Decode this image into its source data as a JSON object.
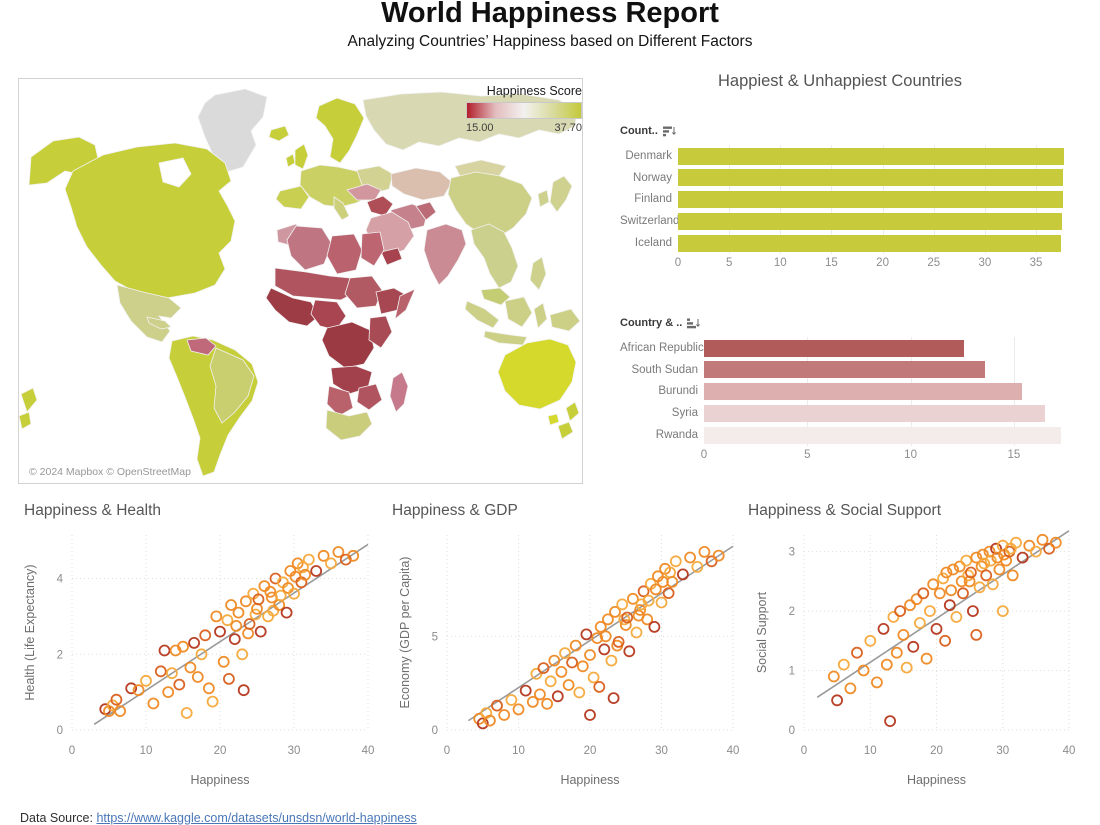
{
  "page": {
    "title": "World Happiness Report",
    "subtitle": "Analyzing Countries’ Happiness based on Different Factors",
    "footer_label": "Data Source:",
    "footer_link_text": "https://www.kaggle.com/datasets/unsdsn/world-happiness"
  },
  "map_panel": {
    "legend_title": "Happiness Score",
    "legend_min": "15.00",
    "legend_max": "37.70",
    "legend_gradient": [
      "#b21f2b",
      "#e3bcbe",
      "#f2f1ef",
      "#d9db9f",
      "#c4c93a"
    ],
    "attribution": "© 2024 Mapbox  © OpenStreetMap"
  },
  "right_panel_title": "Happiest & Unhappiest Countries",
  "point_colors": [
    "#b5371c",
    "#d95f1e",
    "#ef8923",
    "#f6a93b"
  ],
  "chart_data": [
    {
      "id": "happiest-countries",
      "type": "bar",
      "orientation": "horizontal",
      "field_label": "Count..",
      "categories": [
        "Denmark",
        "Norway",
        "Finland",
        "Switzerland",
        "Iceland"
      ],
      "values": [
        37.7,
        37.65,
        37.6,
        37.5,
        37.45
      ],
      "bar_color": "#c6ca3b",
      "xlim": [
        0,
        39.3
      ],
      "ticks": [
        0,
        5,
        10,
        15,
        20,
        25,
        30,
        35
      ]
    },
    {
      "id": "unhappiest-countries",
      "type": "bar",
      "orientation": "horizontal",
      "field_label": "Country & ..",
      "categories": [
        "African Republic",
        "South Sudan",
        "Burundi",
        "Syria",
        "Rwanda"
      ],
      "values": [
        12.6,
        13.6,
        15.4,
        16.5,
        17.3
      ],
      "bar_colors": [
        "#b25b5b",
        "#c27979",
        "#ddafaf",
        "#ebd2d2",
        "#f4ebeb"
      ],
      "xlim": [
        0,
        18.2
      ],
      "ticks": [
        0,
        5,
        10,
        15
      ]
    },
    {
      "id": "happiness-health",
      "type": "scatter",
      "title": "Happiness & Health",
      "xlabel": "Happiness",
      "ylabel": "Health (Life Expectancy)",
      "xlim": [
        0,
        40
      ],
      "ylim": [
        0,
        5.15
      ],
      "x_ticks": [
        0,
        10,
        20,
        30,
        40
      ],
      "y_ticks": [
        0,
        2,
        4
      ],
      "trend": [
        3,
        0.15,
        40,
        4.9
      ],
      "points": [
        [
          4.5,
          0.55,
          0
        ],
        [
          5,
          0.5,
          2
        ],
        [
          5.5,
          0.65,
          3
        ],
        [
          6,
          0.8,
          1
        ],
        [
          6.5,
          0.5,
          2
        ],
        [
          8,
          1.1,
          0
        ],
        [
          9,
          1.05,
          2
        ],
        [
          10,
          1.3,
          3
        ],
        [
          11,
          0.7,
          2
        ],
        [
          12,
          1.55,
          1
        ],
        [
          12.5,
          2.1,
          0
        ],
        [
          13,
          1.0,
          2
        ],
        [
          13.5,
          1.5,
          3
        ],
        [
          14,
          2.1,
          2
        ],
        [
          14.5,
          1.2,
          1
        ],
        [
          15,
          2.2,
          2
        ],
        [
          15.5,
          0.45,
          3
        ],
        [
          16,
          1.65,
          2
        ],
        [
          16.5,
          2.3,
          0
        ],
        [
          17,
          1.4,
          2
        ],
        [
          17.5,
          2.0,
          3
        ],
        [
          18,
          2.5,
          1
        ],
        [
          18.5,
          1.1,
          2
        ],
        [
          19,
          0.75,
          3
        ],
        [
          19.5,
          3.0,
          2
        ],
        [
          20,
          2.6,
          0
        ],
        [
          20.5,
          1.8,
          2
        ],
        [
          21,
          2.9,
          3
        ],
        [
          21.2,
          1.35,
          1
        ],
        [
          21.5,
          3.3,
          2
        ],
        [
          22,
          2.4,
          0
        ],
        [
          22.2,
          2.75,
          2
        ],
        [
          22.5,
          3.1,
          2
        ],
        [
          23,
          2.0,
          3
        ],
        [
          23.2,
          1.05,
          0
        ],
        [
          23.5,
          3.4,
          2
        ],
        [
          23.8,
          2.55,
          2
        ],
        [
          24,
          2.8,
          1
        ],
        [
          24.5,
          3.6,
          3
        ],
        [
          24.8,
          3.05,
          3
        ],
        [
          25,
          3.2,
          2
        ],
        [
          25.2,
          3.45,
          1
        ],
        [
          25.5,
          2.6,
          0
        ],
        [
          26,
          3.8,
          2
        ],
        [
          26.5,
          3.0,
          3
        ],
        [
          26.8,
          3.65,
          2
        ],
        [
          27,
          3.5,
          2
        ],
        [
          27.2,
          3.15,
          3
        ],
        [
          27.5,
          4.0,
          1
        ],
        [
          28,
          3.3,
          2
        ],
        [
          28.2,
          3.55,
          3
        ],
        [
          28.5,
          3.9,
          3
        ],
        [
          29,
          3.1,
          0
        ],
        [
          29.2,
          3.75,
          2
        ],
        [
          29.5,
          4.2,
          2
        ],
        [
          30,
          3.6,
          3
        ],
        [
          30.2,
          4.05,
          2
        ],
        [
          30.5,
          4.4,
          2
        ],
        [
          31,
          3.9,
          1
        ],
        [
          31.2,
          4.3,
          3
        ],
        [
          31.5,
          4.1,
          2
        ],
        [
          32,
          4.5,
          3
        ],
        [
          33,
          4.2,
          0
        ],
        [
          34,
          4.6,
          2
        ],
        [
          35,
          4.4,
          3
        ],
        [
          36,
          4.7,
          2
        ],
        [
          37,
          4.5,
          1
        ],
        [
          38,
          4.6,
          2
        ]
      ]
    },
    {
      "id": "happiness-gdp",
      "type": "scatter",
      "title": "Happiness & GDP",
      "xlabel": "Happiness",
      "ylabel": "Economy (GDP per Capita)",
      "xlim": [
        0,
        40
      ],
      "ylim": [
        0,
        10.4
      ],
      "x_ticks": [
        0,
        10,
        20,
        30,
        40
      ],
      "y_ticks": [
        0,
        5
      ],
      "trend": [
        3,
        0.5,
        40,
        9.8
      ],
      "points": [
        [
          4.5,
          0.6,
          2
        ],
        [
          5,
          0.35,
          0
        ],
        [
          5.5,
          0.9,
          3
        ],
        [
          6,
          0.5,
          2
        ],
        [
          7,
          1.3,
          1
        ],
        [
          8,
          0.8,
          2
        ],
        [
          9,
          1.6,
          3
        ],
        [
          10,
          1.1,
          2
        ],
        [
          11,
          2.1,
          0
        ],
        [
          12,
          1.5,
          2
        ],
        [
          12.5,
          3.0,
          3
        ],
        [
          13,
          1.9,
          2
        ],
        [
          13.5,
          3.3,
          1
        ],
        [
          14,
          1.4,
          2
        ],
        [
          14.5,
          2.6,
          3
        ],
        [
          15,
          3.7,
          2
        ],
        [
          15.5,
          1.8,
          0
        ],
        [
          16,
          3.1,
          2
        ],
        [
          16.5,
          4.1,
          3
        ],
        [
          17,
          2.4,
          2
        ],
        [
          17.5,
          3.6,
          1
        ],
        [
          18,
          4.5,
          2
        ],
        [
          18.5,
          2.0,
          3
        ],
        [
          19,
          3.4,
          2
        ],
        [
          19.5,
          5.1,
          0
        ],
        [
          20,
          4.0,
          2
        ],
        [
          20,
          0.8,
          0
        ],
        [
          20.5,
          2.8,
          3
        ],
        [
          21,
          4.9,
          2
        ],
        [
          21.3,
          2.3,
          1
        ],
        [
          21.5,
          5.5,
          2
        ],
        [
          22,
          4.3,
          0
        ],
        [
          22.2,
          5.0,
          2
        ],
        [
          22.5,
          5.9,
          2
        ],
        [
          23,
          3.7,
          3
        ],
        [
          23.3,
          1.7,
          0
        ],
        [
          23.5,
          6.3,
          2
        ],
        [
          23.8,
          4.5,
          2
        ],
        [
          24,
          4.7,
          1
        ],
        [
          24.5,
          6.7,
          3
        ],
        [
          24.8,
          5.9,
          3
        ],
        [
          25,
          5.6,
          2
        ],
        [
          25.2,
          6.0,
          1
        ],
        [
          25.5,
          4.2,
          0
        ],
        [
          26,
          7.0,
          2
        ],
        [
          26.5,
          5.2,
          3
        ],
        [
          26.8,
          6.1,
          2
        ],
        [
          27,
          6.4,
          2
        ],
        [
          27.2,
          6.7,
          3
        ],
        [
          27.5,
          7.4,
          1
        ],
        [
          28,
          5.9,
          2
        ],
        [
          28.2,
          6.9,
          3
        ],
        [
          28.5,
          7.8,
          3
        ],
        [
          29,
          5.5,
          0
        ],
        [
          29.2,
          7.5,
          2
        ],
        [
          29.5,
          8.2,
          2
        ],
        [
          30,
          6.8,
          3
        ],
        [
          30.2,
          7.9,
          2
        ],
        [
          30.5,
          8.6,
          2
        ],
        [
          31,
          7.3,
          1
        ],
        [
          31.2,
          8.4,
          3
        ],
        [
          31.5,
          7.9,
          2
        ],
        [
          32,
          9.0,
          3
        ],
        [
          33,
          8.3,
          0
        ],
        [
          34,
          9.2,
          2
        ],
        [
          35,
          8.7,
          3
        ],
        [
          36,
          9.5,
          2
        ],
        [
          37,
          9.0,
          1
        ],
        [
          38,
          9.3,
          2
        ]
      ]
    },
    {
      "id": "happiness-social-support",
      "type": "scatter",
      "title": "Happiness & Social Support",
      "xlabel": "Happiness",
      "ylabel": "Social Support",
      "xlim": [
        0,
        40
      ],
      "ylim": [
        0,
        3.28
      ],
      "x_ticks": [
        0,
        10,
        20,
        30,
        40
      ],
      "y_ticks": [
        0,
        1,
        2,
        3
      ],
      "trend": [
        2,
        0.55,
        40,
        3.35
      ],
      "points": [
        [
          4.5,
          0.9,
          2
        ],
        [
          5,
          0.5,
          0
        ],
        [
          6,
          1.1,
          3
        ],
        [
          7,
          0.7,
          2
        ],
        [
          8,
          1.3,
          1
        ],
        [
          9,
          1.0,
          2
        ],
        [
          10,
          1.5,
          3
        ],
        [
          11,
          0.8,
          2
        ],
        [
          12,
          1.7,
          0
        ],
        [
          12.5,
          1.1,
          2
        ],
        [
          13,
          0.15,
          0
        ],
        [
          13.5,
          1.9,
          3
        ],
        [
          14,
          1.3,
          2
        ],
        [
          14.5,
          2.0,
          1
        ],
        [
          15,
          1.6,
          2
        ],
        [
          15.5,
          1.05,
          3
        ],
        [
          16,
          2.1,
          2
        ],
        [
          16.5,
          1.4,
          0
        ],
        [
          17,
          2.2,
          2
        ],
        [
          17.5,
          1.8,
          3
        ],
        [
          18,
          2.3,
          1
        ],
        [
          18.5,
          1.2,
          2
        ],
        [
          19,
          2.0,
          3
        ],
        [
          19.5,
          2.45,
          2
        ],
        [
          20,
          1.7,
          0
        ],
        [
          20.5,
          2.3,
          2
        ],
        [
          21,
          2.55,
          3
        ],
        [
          21.3,
          1.5,
          1
        ],
        [
          21.5,
          2.65,
          2
        ],
        [
          22,
          2.1,
          0
        ],
        [
          22.2,
          2.35,
          2
        ],
        [
          22.5,
          2.7,
          2
        ],
        [
          23,
          1.9,
          3
        ],
        [
          23.5,
          2.75,
          2
        ],
        [
          23.8,
          2.5,
          2
        ],
        [
          24,
          2.3,
          1
        ],
        [
          24.5,
          2.85,
          3
        ],
        [
          24.8,
          2.6,
          3
        ],
        [
          25,
          2.5,
          2
        ],
        [
          25.2,
          2.65,
          1
        ],
        [
          25.5,
          2.0,
          0
        ],
        [
          26,
          2.9,
          2
        ],
        [
          26,
          1.6,
          1
        ],
        [
          26.5,
          2.4,
          3
        ],
        [
          26.8,
          2.75,
          2
        ],
        [
          27,
          2.95,
          2
        ],
        [
          27.2,
          2.8,
          3
        ],
        [
          27.5,
          2.6,
          1
        ],
        [
          28,
          3.0,
          2
        ],
        [
          28.2,
          2.85,
          3
        ],
        [
          28.5,
          2.45,
          3
        ],
        [
          29,
          3.05,
          0
        ],
        [
          29.2,
          2.9,
          2
        ],
        [
          29.5,
          2.7,
          2
        ],
        [
          30,
          3.1,
          3
        ],
        [
          30,
          2.0,
          3
        ],
        [
          30.2,
          2.95,
          2
        ],
        [
          30.5,
          2.85,
          2
        ],
        [
          31,
          3.0,
          1
        ],
        [
          31.2,
          3.05,
          3
        ],
        [
          31.5,
          2.6,
          2
        ],
        [
          32,
          3.15,
          3
        ],
        [
          33,
          2.9,
          0
        ],
        [
          34,
          3.1,
          2
        ],
        [
          35,
          3.0,
          3
        ],
        [
          36,
          3.2,
          2
        ],
        [
          37,
          3.05,
          1
        ],
        [
          38,
          3.15,
          2
        ]
      ]
    }
  ]
}
